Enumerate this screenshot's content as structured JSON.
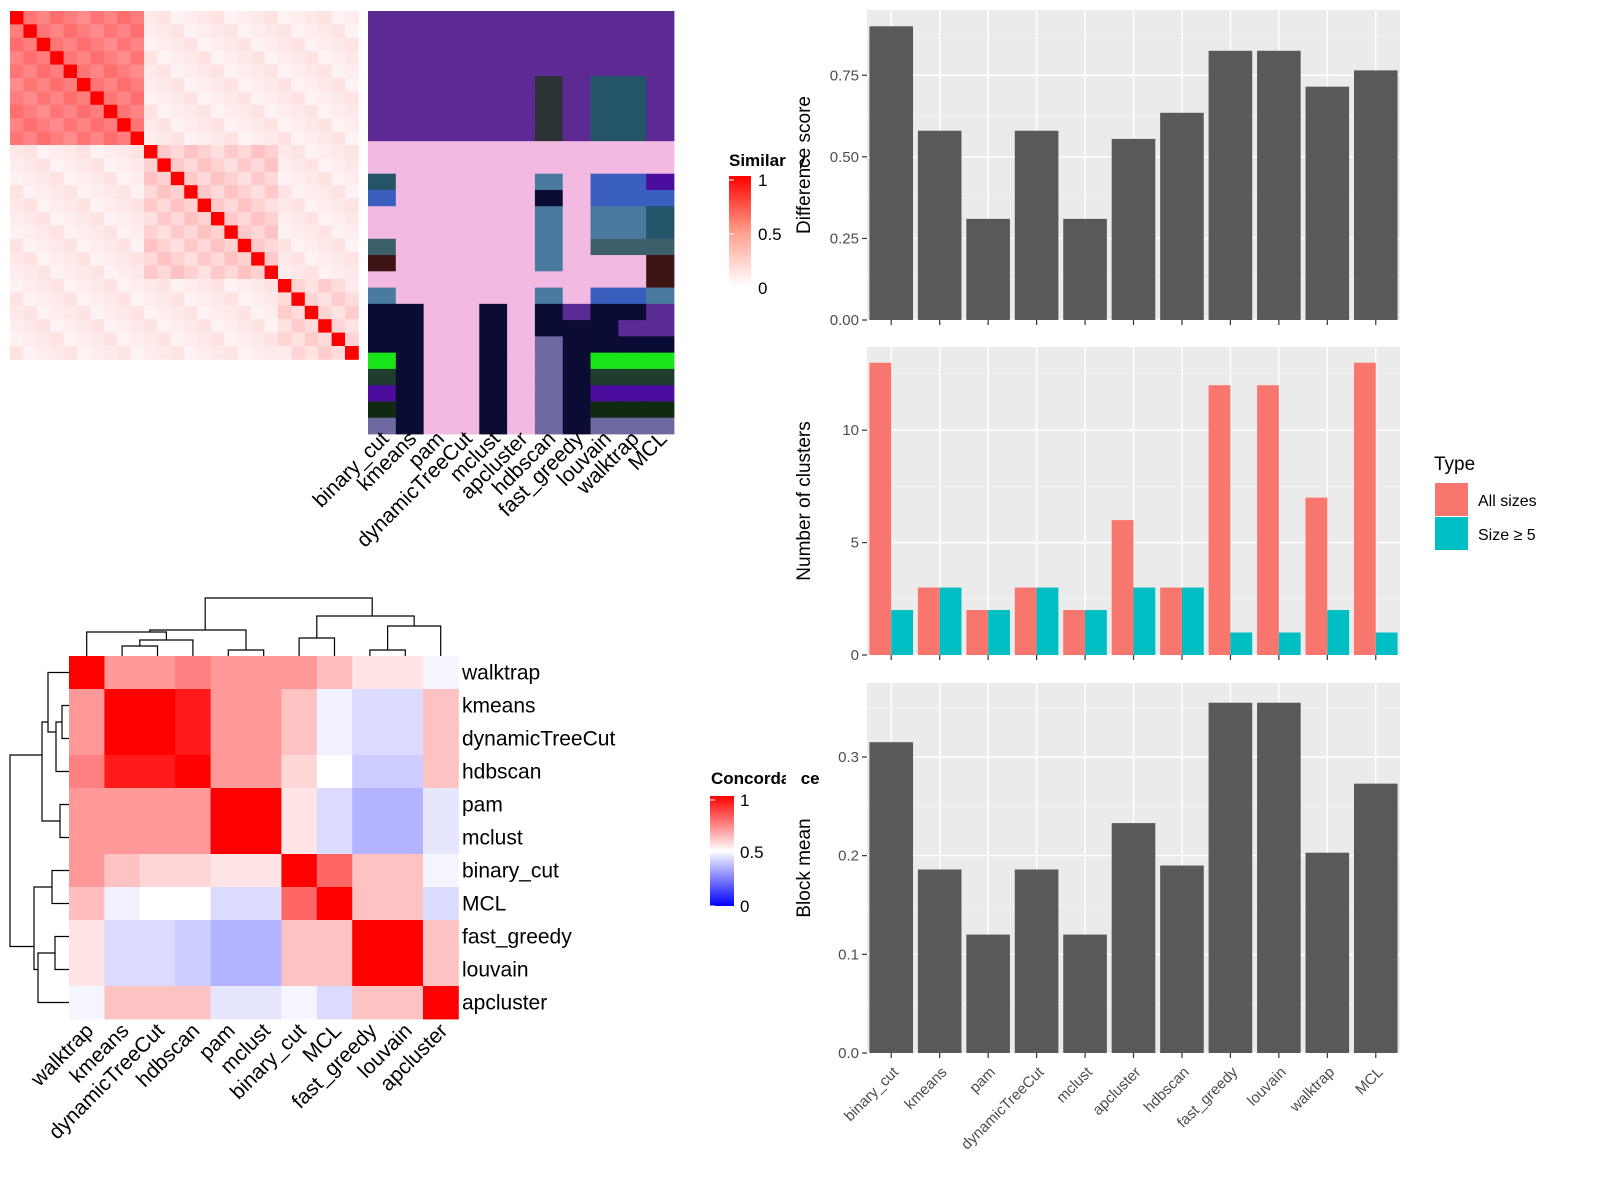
{
  "chart_data": [
    {
      "id": "similarity_heatmap",
      "type": "heatmap",
      "methods": [
        "binary_cut",
        "kmeans",
        "pam",
        "dynamicTreeCut",
        "mclust",
        "apcluster",
        "hdbscan",
        "fast_greedy",
        "louvain",
        "walktrap",
        "MCL"
      ],
      "legend": {
        "title": "Similarity",
        "ticks": [
          "1",
          "0.5",
          "0"
        ]
      },
      "n_terms": 26,
      "similarity_blocks": [
        [
          0,
          10,
          0.45
        ],
        [
          10,
          20,
          0.12
        ],
        [
          20,
          26,
          0.08
        ]
      ],
      "cluster_colors": {
        "purple": "#5c2a92",
        "pink": "#f2b9e2",
        "navy": "#0b0c33",
        "teal": "#245468",
        "blue": "#3b5fbf",
        "steel": "#4a7aa0",
        "slate": "#3d5f6b",
        "maroon": "#3f1414",
        "green": "#19e619",
        "darkgreen": "#1f3d2f",
        "violet": "#4c0d9e",
        "forest": "#0f2a10",
        "lavender": "#6e69a0",
        "mauve": "#5a2a95",
        "charcoal": "#2b3335"
      },
      "cluster_assignments": [
        [
          "purple",
          "purple",
          "purple",
          "purple",
          "purple",
          "purple",
          "purple",
          "purple",
          "purple",
          "purple",
          "purple"
        ],
        [
          "purple",
          "purple",
          "purple",
          "purple",
          "purple",
          "purple",
          "purple",
          "purple",
          "purple",
          "purple",
          "purple"
        ],
        [
          "purple",
          "purple",
          "purple",
          "purple",
          "purple",
          "purple",
          "purple",
          "purple",
          "purple",
          "purple",
          "purple"
        ],
        [
          "purple",
          "purple",
          "purple",
          "purple",
          "purple",
          "purple",
          "purple",
          "purple",
          "purple",
          "purple",
          "purple"
        ],
        [
          "purple",
          "purple",
          "purple",
          "purple",
          "purple",
          "purple",
          "charcoal",
          "purple",
          "teal",
          "teal",
          "purple"
        ],
        [
          "purple",
          "purple",
          "purple",
          "purple",
          "purple",
          "purple",
          "charcoal",
          "purple",
          "teal",
          "teal",
          "purple"
        ],
        [
          "purple",
          "purple",
          "purple",
          "purple",
          "purple",
          "purple",
          "charcoal",
          "purple",
          "teal",
          "teal",
          "purple"
        ],
        [
          "purple",
          "purple",
          "purple",
          "purple",
          "purple",
          "purple",
          "charcoal",
          "purple",
          "teal",
          "teal",
          "purple"
        ],
        [
          "pink",
          "pink",
          "pink",
          "pink",
          "pink",
          "pink",
          "pink",
          "pink",
          "pink",
          "pink",
          "pink"
        ],
        [
          "pink",
          "pink",
          "pink",
          "pink",
          "pink",
          "pink",
          "pink",
          "pink",
          "pink",
          "pink",
          "pink"
        ],
        [
          "teal",
          "pink",
          "pink",
          "pink",
          "pink",
          "pink",
          "steel",
          "pink",
          "blue",
          "blue",
          "violet"
        ],
        [
          "blue",
          "pink",
          "pink",
          "pink",
          "pink",
          "pink",
          "navy",
          "pink",
          "blue",
          "blue",
          "blue"
        ],
        [
          "pink",
          "pink",
          "pink",
          "pink",
          "pink",
          "pink",
          "steel",
          "pink",
          "steel",
          "steel",
          "teal"
        ],
        [
          "pink",
          "pink",
          "pink",
          "pink",
          "pink",
          "pink",
          "steel",
          "pink",
          "steel",
          "steel",
          "teal"
        ],
        [
          "slate",
          "pink",
          "pink",
          "pink",
          "pink",
          "pink",
          "steel",
          "pink",
          "slate",
          "slate",
          "slate"
        ],
        [
          "maroon",
          "pink",
          "pink",
          "pink",
          "pink",
          "pink",
          "steel",
          "pink",
          "pink",
          "pink",
          "maroon"
        ],
        [
          "pink",
          "pink",
          "pink",
          "pink",
          "pink",
          "pink",
          "pink",
          "pink",
          "pink",
          "pink",
          "maroon"
        ],
        [
          "steel",
          "pink",
          "pink",
          "pink",
          "pink",
          "pink",
          "steel",
          "pink",
          "blue",
          "blue",
          "steel"
        ],
        [
          "navy",
          "navy",
          "pink",
          "pink",
          "navy",
          "pink",
          "navy",
          "mauve",
          "navy",
          "navy",
          "mauve"
        ],
        [
          "navy",
          "navy",
          "pink",
          "pink",
          "navy",
          "pink",
          "navy",
          "navy",
          "navy",
          "mauve",
          "mauve"
        ],
        [
          "navy",
          "navy",
          "pink",
          "pink",
          "navy",
          "pink",
          "lavender",
          "navy",
          "navy",
          "navy",
          "navy"
        ],
        [
          "green",
          "navy",
          "pink",
          "pink",
          "navy",
          "pink",
          "lavender",
          "navy",
          "green",
          "green",
          "green"
        ],
        [
          "darkgreen",
          "navy",
          "pink",
          "pink",
          "navy",
          "pink",
          "lavender",
          "navy",
          "darkgreen",
          "darkgreen",
          "darkgreen"
        ],
        [
          "violet",
          "navy",
          "pink",
          "pink",
          "navy",
          "pink",
          "lavender",
          "navy",
          "violet",
          "violet",
          "violet"
        ],
        [
          "forest",
          "navy",
          "pink",
          "pink",
          "navy",
          "pink",
          "lavender",
          "navy",
          "forest",
          "forest",
          "forest"
        ],
        [
          "lavender",
          "navy",
          "pink",
          "pink",
          "navy",
          "pink",
          "lavender",
          "navy",
          "lavender",
          "lavender",
          "lavender"
        ]
      ]
    },
    {
      "id": "concordance_heatmap",
      "type": "heatmap",
      "order": [
        "walktrap",
        "kmeans",
        "dynamicTreeCut",
        "hdbscan",
        "pam",
        "mclust",
        "binary_cut",
        "MCL",
        "fast_greedy",
        "louvain",
        "apcluster"
      ],
      "legend": {
        "title": "Concordance",
        "ticks": [
          "1",
          "0.5",
          "0"
        ]
      },
      "values": [
        [
          1,
          0.7,
          0.7,
          0.75,
          0.7,
          0.7,
          0.7,
          0.63,
          0.55,
          0.55,
          0.48
        ],
        [
          0.7,
          1,
          1,
          0.95,
          0.7,
          0.7,
          0.62,
          0.47,
          0.43,
          0.43,
          0.62
        ],
        [
          0.7,
          1,
          1,
          0.95,
          0.7,
          0.7,
          0.62,
          0.47,
          0.43,
          0.43,
          0.62
        ],
        [
          0.75,
          0.95,
          0.95,
          1,
          0.7,
          0.7,
          0.58,
          0.5,
          0.4,
          0.4,
          0.62
        ],
        [
          0.7,
          0.7,
          0.7,
          0.7,
          1,
          1,
          0.55,
          0.43,
          0.35,
          0.35,
          0.45
        ],
        [
          0.7,
          0.7,
          0.7,
          0.7,
          1,
          1,
          0.55,
          0.43,
          0.35,
          0.35,
          0.45
        ],
        [
          0.7,
          0.62,
          0.58,
          0.58,
          0.55,
          0.55,
          1,
          0.8,
          0.62,
          0.62,
          0.48
        ],
        [
          0.63,
          0.47,
          0.5,
          0.5,
          0.43,
          0.43,
          0.8,
          1,
          0.62,
          0.62,
          0.43
        ],
        [
          0.55,
          0.43,
          0.43,
          0.4,
          0.35,
          0.35,
          0.62,
          0.62,
          1,
          1,
          0.62
        ],
        [
          0.55,
          0.43,
          0.43,
          0.4,
          0.35,
          0.35,
          0.62,
          0.62,
          1,
          1,
          0.62
        ],
        [
          0.48,
          0.62,
          0.62,
          0.62,
          0.45,
          0.45,
          0.48,
          0.43,
          0.62,
          0.62,
          1
        ]
      ]
    },
    {
      "id": "difference_score",
      "type": "bar",
      "categories": [
        "binary_cut",
        "kmeans",
        "pam",
        "dynamicTreeCut",
        "mclust",
        "apcluster",
        "hdbscan",
        "fast_greedy",
        "louvain",
        "walktrap",
        "MCL"
      ],
      "values": [
        0.9,
        0.58,
        0.31,
        0.58,
        0.31,
        0.555,
        0.635,
        0.825,
        0.825,
        0.715,
        0.765
      ],
      "ylabel": "Difference score",
      "ylim": [
        0,
        0.95
      ],
      "yticks": [
        0,
        0.25,
        0.5,
        0.75
      ],
      "ytick_labels": [
        "0.00",
        "0.25",
        "0.50",
        "0.75"
      ],
      "bar_color": "#595959"
    },
    {
      "id": "number_of_clusters",
      "type": "bar",
      "categories": [
        "binary_cut",
        "kmeans",
        "pam",
        "dynamicTreeCut",
        "mclust",
        "apcluster",
        "hdbscan",
        "fast_greedy",
        "louvain",
        "walktrap",
        "MCL"
      ],
      "series": [
        {
          "name": "All sizes",
          "values": [
            13,
            3,
            2,
            3,
            2,
            6,
            3,
            12,
            12,
            7,
            13
          ],
          "color": "#F8766D"
        },
        {
          "name": "Size ≥ 5",
          "values": [
            2,
            3,
            2,
            3,
            2,
            3,
            3,
            1,
            1,
            2,
            1
          ],
          "color": "#00BFC4"
        }
      ],
      "ylabel": "Number of clusters",
      "ylim": [
        0,
        13.7
      ],
      "yticks": [
        0,
        5,
        10
      ],
      "ytick_labels": [
        "0",
        "5",
        "10"
      ],
      "legend": {
        "title": "Type",
        "position": "right"
      }
    },
    {
      "id": "block_mean",
      "type": "bar",
      "categories": [
        "binary_cut",
        "kmeans",
        "pam",
        "dynamicTreeCut",
        "mclust",
        "apcluster",
        "hdbscan",
        "fast_greedy",
        "louvain",
        "walktrap",
        "MCL"
      ],
      "values": [
        0.315,
        0.186,
        0.12,
        0.186,
        0.12,
        0.233,
        0.19,
        0.355,
        0.355,
        0.203,
        0.273
      ],
      "ylabel": "Block mean",
      "ylim": [
        0,
        0.375
      ],
      "yticks": [
        0,
        0.1,
        0.2,
        0.3
      ],
      "ytick_labels": [
        "0.0",
        "0.1",
        "0.2",
        "0.3"
      ],
      "bar_color": "#595959"
    }
  ]
}
